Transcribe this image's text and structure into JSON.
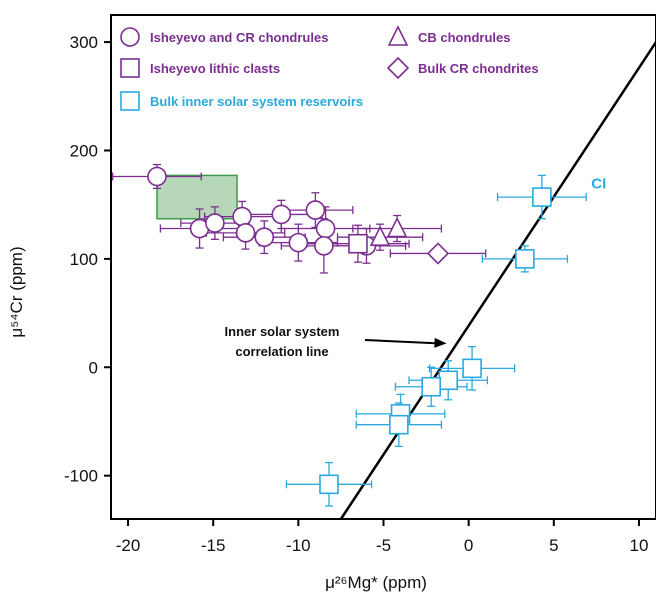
{
  "chart_data": {
    "type": "scatter",
    "xlabel": "μ²⁶Mg* (ppm)",
    "ylabel": "μ⁵⁴Cr (ppm)",
    "xlim": [
      -21,
      11
    ],
    "ylim": [
      -140,
      325
    ],
    "xticks": [
      "-20",
      "-15",
      "-10",
      "-5",
      "0",
      "5",
      "10"
    ],
    "xtick_values": [
      -20,
      -15,
      -10,
      -5,
      0,
      5,
      10
    ],
    "yticks": [
      "300",
      "200",
      "100",
      "0",
      "-100"
    ],
    "ytick_values": [
      300,
      200,
      100,
      0,
      -100
    ],
    "colors": {
      "purple": "#7b2e90",
      "cyan": "#2aa9df",
      "green_fill": "#b7d8b8",
      "green_stroke": "#3e9b4b",
      "line": "#000000"
    },
    "legend": {
      "placement": "top-left",
      "entries": [
        {
          "label": "Isheyevo and CR chondrules",
          "marker": "circle",
          "color": "purple"
        },
        {
          "label": "CB chondrules",
          "marker": "triangle",
          "color": "purple"
        },
        {
          "label": "Isheyevo lithic clasts",
          "marker": "square",
          "color": "purple"
        },
        {
          "label": "Bulk CR chondrites",
          "marker": "diamond",
          "color": "purple"
        },
        {
          "label": "Bulk inner solar system reservoirs",
          "marker": "square",
          "color": "cyan"
        }
      ]
    },
    "series": [
      {
        "name": "Isheyevo and CR chondrules",
        "marker": "circle",
        "color": "purple",
        "points": [
          {
            "x": -18.3,
            "y": 176,
            "xerr": 2.6,
            "yerr": 11
          },
          {
            "x": -15.8,
            "y": 128,
            "xerr": 2.3,
            "yerr": 18
          },
          {
            "x": -14.9,
            "y": 133,
            "xerr": 2.0,
            "yerr": 15
          },
          {
            "x": -13.3,
            "y": 139,
            "xerr": 2.2,
            "yerr": 14
          },
          {
            "x": -13.1,
            "y": 124,
            "xerr": 2.3,
            "yerr": 15
          },
          {
            "x": -12.0,
            "y": 120,
            "xerr": 2.4,
            "yerr": 15
          },
          {
            "x": -11.0,
            "y": 141,
            "xerr": 2.4,
            "yerr": 13
          },
          {
            "x": -10.0,
            "y": 115,
            "xerr": 2.3,
            "yerr": 17
          },
          {
            "x": -9.0,
            "y": 145,
            "xerr": 2.2,
            "yerr": 16
          },
          {
            "x": -8.4,
            "y": 128,
            "xerr": 2.6,
            "yerr": 20
          },
          {
            "x": -8.5,
            "y": 112,
            "xerr": 2.5,
            "yerr": 25
          },
          {
            "x": -6.0,
            "y": 112,
            "xerr": 2.3,
            "yerr": 16
          }
        ]
      },
      {
        "name": "CB chondrules",
        "marker": "triangle",
        "color": "purple",
        "points": [
          {
            "x": -4.2,
            "y": 128,
            "xerr": 2.6,
            "yerr": 12
          },
          {
            "x": -5.2,
            "y": 120,
            "xerr": 2.5,
            "yerr": 12
          }
        ]
      },
      {
        "name": "Isheyevo lithic clasts",
        "marker": "square",
        "color": "purple",
        "points": [
          {
            "x": -6.5,
            "y": 114,
            "xerr": 3.0,
            "yerr": 17
          }
        ]
      },
      {
        "name": "Bulk CR chondrites",
        "marker": "diamond",
        "color": "purple",
        "points": [
          {
            "x": -1.8,
            "y": 105,
            "xerr": 2.8,
            "yerr": 0
          }
        ]
      },
      {
        "name": "Bulk inner solar system reservoirs",
        "marker": "square",
        "color": "cyan",
        "points": [
          {
            "x": 4.3,
            "y": 157,
            "xerr": 2.6,
            "yerr": 20
          },
          {
            "x": 3.3,
            "y": 100,
            "xerr": 2.5,
            "yerr": 12
          },
          {
            "x": 0.2,
            "y": -1,
            "xerr": 2.5,
            "yerr": 20
          },
          {
            "x": -1.2,
            "y": -12,
            "xerr": 2.3,
            "yerr": 18
          },
          {
            "x": -2.2,
            "y": -18,
            "xerr": 2.1,
            "yerr": 18
          },
          {
            "x": -4.0,
            "y": -43,
            "xerr": 2.6,
            "yerr": 18
          },
          {
            "x": -4.1,
            "y": -53,
            "xerr": 2.5,
            "yerr": 20
          },
          {
            "x": -8.2,
            "y": -108,
            "xerr": 2.5,
            "yerr": 20
          }
        ]
      }
    ],
    "shaded_region": {
      "x": [
        -18.3,
        -13.6
      ],
      "y": [
        137,
        177
      ]
    },
    "correlation_line": {
      "x": [
        -7.5,
        11.0
      ],
      "y": [
        -140,
        300
      ]
    },
    "annotations": [
      {
        "id": "correlation",
        "lines": [
          "Inner solar system",
          "correlation line"
        ],
        "arrow_to": {
          "x": -1.3,
          "y": 22
        }
      },
      {
        "id": "ci",
        "text": "CI",
        "x": 7.2,
        "y": 165
      }
    ]
  }
}
